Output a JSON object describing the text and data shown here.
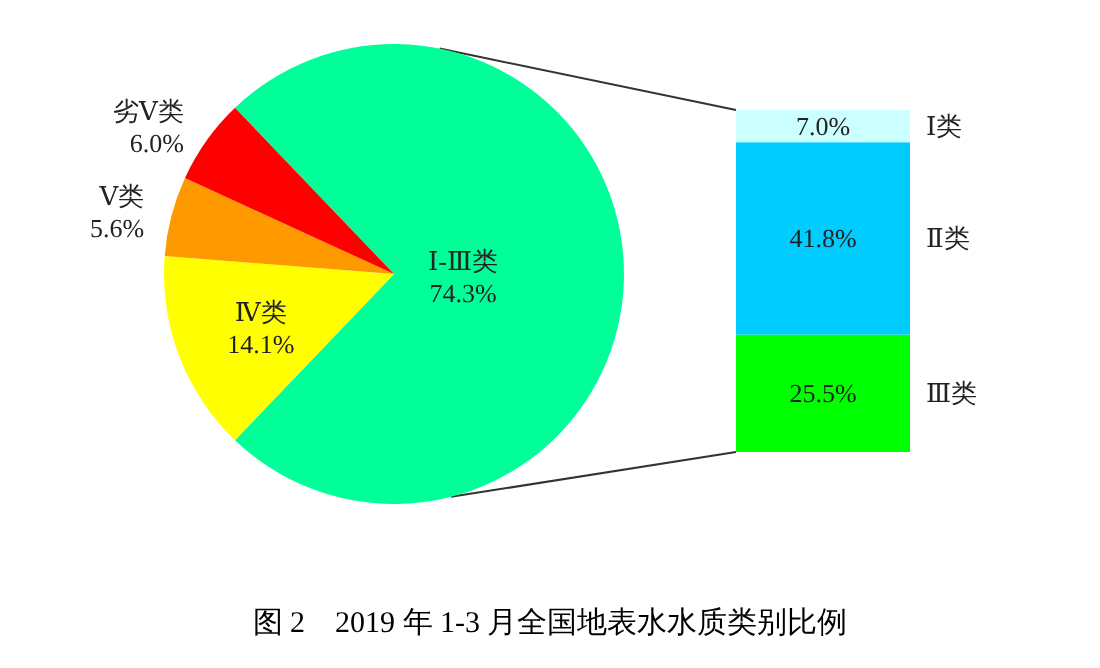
{
  "chart_data": [
    {
      "type": "pie",
      "title": "图 2　2019 年 1-3 月全国地表水水质类别比例",
      "categories": [
        "Ⅰ-Ⅲ类",
        "Ⅳ类",
        "Ⅴ类",
        "劣Ⅴ类"
      ],
      "values": [
        74.3,
        14.1,
        5.6,
        6.0
      ],
      "colors": [
        "#00ff99",
        "#ffff00",
        "#ff9900",
        "#ff0000"
      ],
      "value_labels": [
        "74.3%",
        "14.1%",
        "5.6%",
        "6.0%"
      ]
    },
    {
      "type": "bar",
      "stacked": true,
      "categories": [
        null
      ],
      "series": [
        {
          "name": "Ⅲ类",
          "color": "#00ff00",
          "values": [
            25.5
          ],
          "value_labels": [
            "25.5%"
          ]
        },
        {
          "name": "Ⅱ类",
          "color": "#00ccff",
          "values": [
            41.8
          ],
          "value_labels": [
            "41.8%"
          ]
        },
        {
          "name": "Ⅰ类",
          "color": "#ccffff",
          "values": [
            7.0
          ],
          "value_labels": [
            "7.0%"
          ]
        }
      ]
    }
  ]
}
